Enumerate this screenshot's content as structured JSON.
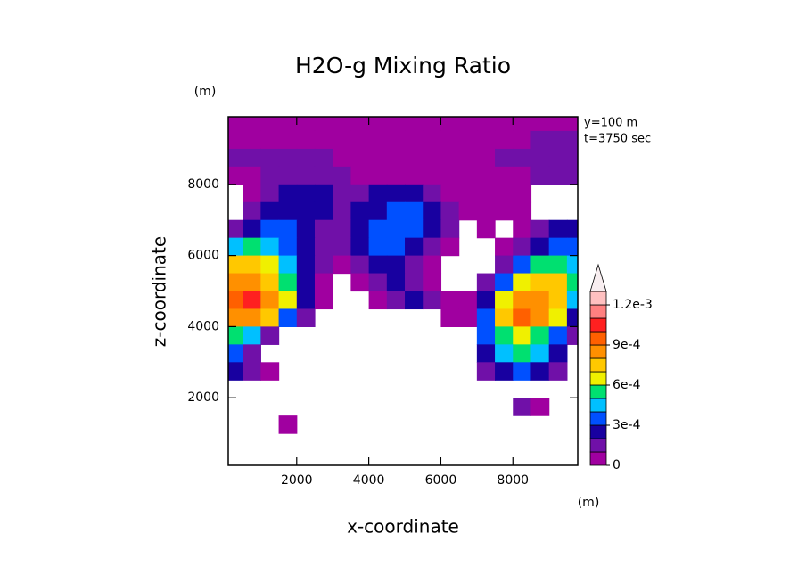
{
  "chart_data": {
    "type": "contour",
    "title": "H2O-g Mixing Ratio",
    "x_label": "x-coordinate",
    "y_label": "z-coordinate",
    "x_unit": "(m)",
    "y_unit": "(m)",
    "annotations": [
      "y=100 m",
      "t=3750 sec"
    ],
    "xlim": [
      100,
      9800
    ],
    "ylim": [
      100,
      9900
    ],
    "xticks": [
      2000,
      4000,
      6000,
      8000
    ],
    "yticks": [
      2000,
      4000,
      6000,
      8000
    ],
    "x": [
      250,
      750,
      1250,
      1750,
      2250,
      2750,
      3250,
      3750,
      4250,
      4750,
      5250,
      5750,
      6250,
      6750,
      7250,
      7750,
      8250,
      8750,
      9250,
      9750
    ],
    "y": [
      9750,
      9250,
      8750,
      8250,
      7750,
      7250,
      6750,
      6250,
      5750,
      5250,
      4750,
      4250,
      3750,
      3250,
      2750,
      2250,
      1750,
      1250,
      750,
      250
    ],
    "z": [
      [
        5e-05,
        5e-05,
        5e-05,
        5e-05,
        5e-05,
        5e-05,
        5e-05,
        5e-05,
        5e-05,
        5e-05,
        5e-05,
        5e-05,
        5e-05,
        5e-05,
        5e-05,
        5e-05,
        5e-05,
        5e-05,
        5e-05,
        5e-05
      ],
      [
        5e-05,
        5e-05,
        5e-05,
        5e-05,
        5e-05,
        5e-05,
        5e-05,
        5e-05,
        5e-05,
        5e-05,
        5e-05,
        5e-05,
        5e-05,
        5e-05,
        5e-05,
        5e-05,
        5e-05,
        0.00015,
        0.00015,
        0.00015
      ],
      [
        0.00015,
        0.00015,
        0.00015,
        0.00015,
        0.00015,
        0.00015,
        5e-05,
        5e-05,
        5e-05,
        5e-05,
        5e-05,
        5e-05,
        5e-05,
        5e-05,
        5e-05,
        0.00015,
        0.00015,
        0.00015,
        0.00015,
        0.00015
      ],
      [
        5e-05,
        5e-05,
        0.00015,
        0.00015,
        0.00015,
        0.00015,
        0.00015,
        5e-05,
        5e-05,
        5e-05,
        5e-05,
        5e-05,
        5e-05,
        5e-05,
        5e-05,
        5e-05,
        5e-05,
        0.00015,
        0.00015,
        0.00015
      ],
      [
        null,
        5e-05,
        0.00015,
        0.00025,
        0.00025,
        0.00025,
        0.00015,
        0.00015,
        0.00025,
        0.00025,
        0.00025,
        0.00015,
        5e-05,
        5e-05,
        5e-05,
        5e-05,
        5e-05,
        null,
        null,
        null
      ],
      [
        null,
        0.00015,
        0.00025,
        0.00025,
        0.00025,
        0.00025,
        0.00015,
        0.00025,
        0.00025,
        0.00035,
        0.00035,
        0.00025,
        0.00015,
        5e-05,
        5e-05,
        5e-05,
        5e-05,
        null,
        null,
        null
      ],
      [
        0.00015,
        0.00025,
        0.00035,
        0.00035,
        0.00025,
        0.00015,
        0.00015,
        0.00025,
        0.00035,
        0.00035,
        0.00035,
        0.00025,
        0.00015,
        null,
        5e-05,
        null,
        5e-05,
        0.00015,
        0.00025,
        0.00025
      ],
      [
        0.00045,
        0.00055,
        0.00045,
        0.00035,
        0.00025,
        0.00015,
        0.00015,
        0.00025,
        0.00035,
        0.00035,
        0.00025,
        0.00015,
        5e-05,
        null,
        null,
        5e-05,
        0.00015,
        0.00025,
        0.00035,
        0.00035
      ],
      [
        0.00075,
        0.00075,
        0.00065,
        0.00045,
        0.00025,
        0.00015,
        5e-05,
        0.00015,
        0.00025,
        0.00025,
        0.00015,
        5e-05,
        null,
        null,
        null,
        0.00015,
        0.00035,
        0.00055,
        0.00055,
        0.00045
      ],
      [
        0.00085,
        0.00085,
        0.00075,
        0.00055,
        0.00025,
        5e-05,
        null,
        5e-05,
        0.00015,
        0.00025,
        0.00015,
        5e-05,
        null,
        null,
        0.00015,
        0.00035,
        0.00065,
        0.00075,
        0.00075,
        0.00055
      ],
      [
        0.00095,
        0.00105,
        0.00085,
        0.00065,
        0.00025,
        5e-05,
        null,
        null,
        5e-05,
        0.00015,
        0.00025,
        0.00015,
        5e-05,
        5e-05,
        0.00025,
        0.00065,
        0.00085,
        0.00085,
        0.00075,
        0.00045
      ],
      [
        0.00085,
        0.00085,
        0.00075,
        0.00035,
        0.00015,
        null,
        null,
        null,
        null,
        null,
        null,
        null,
        5e-05,
        5e-05,
        0.00035,
        0.00075,
        0.00095,
        0.00085,
        0.00065,
        0.00025
      ],
      [
        0.00055,
        0.00045,
        0.00015,
        null,
        null,
        null,
        null,
        null,
        null,
        null,
        null,
        null,
        null,
        null,
        0.00035,
        0.00055,
        0.00065,
        0.00055,
        0.00035,
        0.00015
      ],
      [
        0.00035,
        0.00015,
        null,
        null,
        null,
        null,
        null,
        null,
        null,
        null,
        null,
        null,
        null,
        null,
        0.00025,
        0.00045,
        0.00055,
        0.00045,
        0.00025,
        null
      ],
      [
        0.00025,
        0.00015,
        5e-05,
        null,
        null,
        null,
        null,
        null,
        null,
        null,
        null,
        null,
        null,
        null,
        0.00015,
        0.00025,
        0.00035,
        0.00025,
        0.00015,
        null
      ],
      [
        null,
        null,
        null,
        null,
        null,
        null,
        null,
        null,
        null,
        null,
        null,
        null,
        null,
        null,
        null,
        null,
        null,
        null,
        null,
        null
      ],
      [
        null,
        null,
        null,
        null,
        null,
        null,
        null,
        null,
        null,
        null,
        null,
        null,
        null,
        null,
        null,
        null,
        0.00015,
        5e-05,
        null,
        null
      ],
      [
        null,
        null,
        null,
        5e-05,
        null,
        null,
        null,
        null,
        null,
        null,
        null,
        null,
        null,
        null,
        null,
        null,
        null,
        null,
        null,
        null
      ],
      [
        null,
        null,
        null,
        null,
        null,
        null,
        null,
        null,
        null,
        null,
        null,
        null,
        null,
        null,
        null,
        null,
        null,
        null,
        null,
        null
      ],
      [
        null,
        null,
        null,
        null,
        null,
        null,
        null,
        null,
        null,
        null,
        null,
        null,
        null,
        null,
        null,
        null,
        null,
        null,
        null,
        null
      ]
    ],
    "levels": [
      0,
      0.0001,
      0.0002,
      0.0003,
      0.0004,
      0.0005,
      0.0006,
      0.0007,
      0.0008,
      0.0009,
      0.001,
      0.0011,
      0.0012,
      0.0013
    ],
    "colors": [
      "#a000a0",
      "#7010a8",
      "#1800a0",
      "#0050ff",
      "#00c0ff",
      "#00e070",
      "#f0f000",
      "#ffc800",
      "#ff9000",
      "#ff6000",
      "#ff2020",
      "#ff8080",
      "#ffc0c0"
    ],
    "over_color": "#f8eef0",
    "colorbar_ticks": [
      0,
      {
        "value": 0.0003,
        "label": "3e-4"
      },
      {
        "value": 0.0006,
        "label": "6e-4"
      },
      {
        "value": 0.0009,
        "label": "9e-4"
      },
      {
        "value": 0.0012,
        "label": "1.2e-3"
      }
    ]
  }
}
